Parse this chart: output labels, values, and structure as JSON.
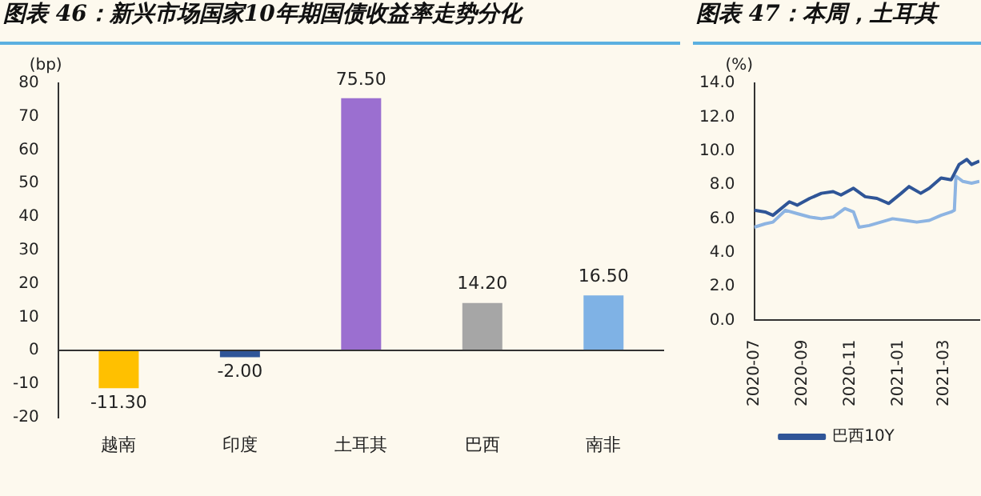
{
  "chart_data": [
    {
      "type": "bar",
      "title": "图表 46：新兴市场国家10年期国债收益率走势分化",
      "ylabel": "(bp)",
      "categories": [
        "越南",
        "印度",
        "土耳其",
        "巴西",
        "南非"
      ],
      "values": [
        -11.3,
        -2.0,
        75.5,
        14.2,
        16.5
      ],
      "value_labels": [
        "-11.30",
        "-2.00",
        "75.50",
        "14.20",
        "16.50"
      ],
      "colors": [
        "#ffc000",
        "#2f5597",
        "#9b6fd0",
        "#a6a6a6",
        "#7fb2e5"
      ],
      "ylim": [
        -20,
        80
      ],
      "yticks": [
        -20,
        -10,
        0,
        10,
        20,
        30,
        40,
        50,
        60,
        70,
        80
      ]
    },
    {
      "type": "line",
      "title": "图表 47：本周，土耳其",
      "ylabel": "(%)",
      "legend": "bottom",
      "xlim": [
        "2020-07-01",
        "2021-04-15"
      ],
      "xticks": [
        {
          "value": "2020-07-01",
          "label": "2020-07"
        },
        {
          "value": "2020-09-01",
          "label": "2020-09"
        },
        {
          "value": "2020-11-01",
          "label": "2020-11"
        },
        {
          "value": "2021-01-01",
          "label": "2021-01"
        },
        {
          "value": "2021-03-01",
          "label": "2021-03"
        }
      ],
      "ylim": [
        0,
        14
      ],
      "yticks": [
        {
          "value": 0,
          "label": "0.0"
        },
        {
          "value": 2,
          "label": "2.0"
        },
        {
          "value": 4,
          "label": "4.0"
        },
        {
          "value": 6,
          "label": "6.0"
        },
        {
          "value": 8,
          "label": "8.0"
        },
        {
          "value": 10,
          "label": "10.0"
        },
        {
          "value": 12,
          "label": "12.0"
        },
        {
          "value": 14,
          "label": "14.0"
        }
      ],
      "grid": false,
      "marker": "none",
      "series": [
        {
          "name": "巴西10Y",
          "color": "#2f5597",
          "x": [
            "2020-07-01",
            "2020-07-15",
            "2020-07-25",
            "2020-08-15",
            "2020-08-25",
            "2020-09-10",
            "2020-09-25",
            "2020-10-10",
            "2020-10-20",
            "2020-11-05",
            "2020-11-20",
            "2020-12-05",
            "2020-12-20",
            "2021-01-05",
            "2021-01-15",
            "2021-01-30",
            "2021-02-10",
            "2021-02-25",
            "2021-03-10",
            "2021-03-20",
            "2021-03-30",
            "2021-04-05",
            "2021-04-15"
          ],
          "values": [
            6.5,
            6.4,
            6.2,
            7.0,
            6.8,
            7.2,
            7.5,
            7.6,
            7.4,
            7.8,
            7.3,
            7.2,
            6.9,
            7.5,
            7.9,
            7.5,
            7.8,
            8.4,
            8.3,
            9.2,
            9.5,
            9.2,
            9.4
          ]
        },
        {
          "color": "#8db4e2",
          "x": [
            "2020-07-01",
            "2020-07-15",
            "2020-07-25",
            "2020-08-10",
            "2020-08-25",
            "2020-09-10",
            "2020-09-25",
            "2020-10-10",
            "2020-10-25",
            "2020-11-05",
            "2020-11-12",
            "2020-11-25",
            "2020-12-10",
            "2020-12-25",
            "2021-01-10",
            "2021-01-25",
            "2021-02-10",
            "2021-02-25",
            "2021-03-10",
            "2021-03-14",
            "2021-03-16",
            "2021-03-25",
            "2021-04-05",
            "2021-04-15"
          ],
          "values": [
            5.5,
            5.7,
            5.8,
            6.5,
            6.3,
            6.1,
            6.0,
            6.1,
            6.6,
            6.4,
            5.5,
            5.6,
            5.8,
            6.0,
            5.9,
            5.8,
            5.9,
            6.2,
            6.4,
            6.5,
            8.5,
            8.2,
            8.1,
            8.2
          ]
        }
      ]
    }
  ]
}
